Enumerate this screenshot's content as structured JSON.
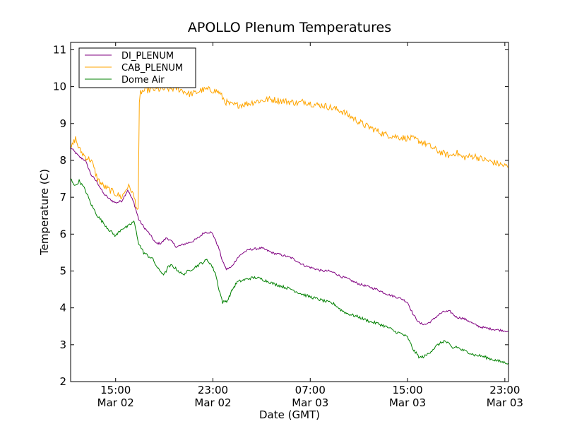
{
  "chart_data": {
    "type": "line",
    "title": "APOLLO Plenum Temperatures",
    "xlabel": "Date (GMT)",
    "ylabel": "Temperature (C)",
    "x_unit": "hours since Mar 02 00:00 GMT",
    "xlim": [
      11.3,
      47.3
    ],
    "ylim": [
      2,
      11.2
    ],
    "y_ticks": [
      2,
      3,
      4,
      5,
      6,
      7,
      8,
      9,
      10,
      11
    ],
    "x_ticks": [
      {
        "x": 15,
        "time": "15:00",
        "date": "Mar 02"
      },
      {
        "x": 23,
        "time": "23:00",
        "date": "Mar 02"
      },
      {
        "x": 31,
        "time": "07:00",
        "date": "Mar 03"
      },
      {
        "x": 39,
        "time": "15:00",
        "date": "Mar 03"
      },
      {
        "x": 47,
        "time": "23:00",
        "date": "Mar 03"
      }
    ],
    "legend_position": "top-left",
    "series": [
      {
        "name": "DI_PLENUM",
        "color": "#800080",
        "x": [
          11.3,
          12.0,
          12.5,
          13.0,
          13.5,
          14.0,
          14.5,
          15.0,
          15.5,
          16.0,
          16.5,
          16.9,
          17.3,
          17.8,
          18.3,
          18.7,
          19.2,
          19.6,
          20.0,
          20.4,
          20.8,
          21.3,
          21.8,
          22.3,
          22.8,
          23.0,
          23.5,
          23.8,
          24.1,
          24.5,
          25.0,
          25.5,
          26.0,
          26.5,
          27.0,
          27.5,
          28.0,
          28.5,
          29.0,
          29.5,
          30.0,
          30.5,
          31.0,
          31.5,
          32.0,
          32.5,
          33.0,
          33.5,
          34.0,
          34.5,
          35.0,
          35.5,
          36.0,
          36.5,
          37.0,
          37.5,
          38.0,
          38.5,
          39.0,
          39.5,
          40.0,
          40.5,
          41.0,
          41.5,
          42.0,
          42.5,
          43.0,
          43.5,
          44.0,
          44.5,
          45.0,
          45.5,
          46.0,
          46.5,
          47.0,
          47.3
        ],
        "y": [
          8.35,
          8.1,
          8.0,
          7.6,
          7.4,
          7.1,
          6.95,
          6.85,
          6.9,
          7.2,
          6.85,
          6.4,
          6.2,
          6.0,
          5.75,
          5.75,
          5.9,
          5.8,
          5.65,
          5.7,
          5.75,
          5.8,
          5.9,
          6.05,
          6.05,
          6.0,
          5.6,
          5.25,
          5.05,
          5.1,
          5.35,
          5.5,
          5.58,
          5.6,
          5.62,
          5.55,
          5.48,
          5.45,
          5.4,
          5.35,
          5.25,
          5.15,
          5.1,
          5.05,
          5.0,
          5.0,
          4.95,
          4.85,
          4.8,
          4.72,
          4.65,
          4.6,
          4.55,
          4.5,
          4.42,
          4.35,
          4.3,
          4.25,
          4.15,
          3.8,
          3.58,
          3.55,
          3.65,
          3.8,
          3.9,
          3.9,
          3.75,
          3.72,
          3.65,
          3.55,
          3.48,
          3.45,
          3.42,
          3.4,
          3.38,
          3.37
        ]
      },
      {
        "name": "CAB_PLENUM",
        "color": "#ffa500",
        "x": [
          11.3,
          11.7,
          12.0,
          12.5,
          13.0,
          13.5,
          14.0,
          14.5,
          15.0,
          15.5,
          16.0,
          16.3,
          16.6,
          16.85,
          16.95,
          17.05,
          17.5,
          18.0,
          19.0,
          20.0,
          20.5,
          21.0,
          21.5,
          22.0,
          22.5,
          23.0,
          23.5,
          24.0,
          24.5,
          25.0,
          25.5,
          26.0,
          26.5,
          27.0,
          27.5,
          28.0,
          28.5,
          29.0,
          29.5,
          30.0,
          30.5,
          31.0,
          31.5,
          32.0,
          32.5,
          33.0,
          33.5,
          34.0,
          34.5,
          35.0,
          35.5,
          36.0,
          36.5,
          37.0,
          37.5,
          38.0,
          38.5,
          39.0,
          39.5,
          40.0,
          40.5,
          41.0,
          41.5,
          42.0,
          42.5,
          43.0,
          43.5,
          44.0,
          44.5,
          45.0,
          45.5,
          46.0,
          46.5,
          47.0,
          47.3
        ],
        "y": [
          8.3,
          8.6,
          8.3,
          8.1,
          8.0,
          7.5,
          7.3,
          7.2,
          7.1,
          7.0,
          7.3,
          7.2,
          6.9,
          6.6,
          9.5,
          9.85,
          9.9,
          9.92,
          9.93,
          9.95,
          9.9,
          9.8,
          9.82,
          9.9,
          9.92,
          9.9,
          9.85,
          9.6,
          9.5,
          9.5,
          9.52,
          9.55,
          9.6,
          9.62,
          9.65,
          9.65,
          9.62,
          9.6,
          9.58,
          9.55,
          9.6,
          9.55,
          9.5,
          9.5,
          9.45,
          9.4,
          9.35,
          9.25,
          9.15,
          9.05,
          8.95,
          8.88,
          8.8,
          8.72,
          8.68,
          8.65,
          8.62,
          8.6,
          8.58,
          8.52,
          8.45,
          8.35,
          8.25,
          8.18,
          8.12,
          8.22,
          8.08,
          8.1,
          8.12,
          8.05,
          8.0,
          7.95,
          7.9,
          7.85,
          7.82
        ]
      },
      {
        "name": "Dome Air",
        "color": "#008000",
        "x": [
          11.3,
          11.7,
          12.0,
          12.5,
          13.0,
          13.5,
          14.0,
          14.5,
          15.0,
          15.5,
          16.0,
          16.5,
          16.9,
          17.3,
          17.7,
          18.0,
          18.5,
          19.0,
          19.3,
          19.6,
          20.0,
          20.5,
          21.0,
          21.5,
          22.0,
          22.5,
          22.8,
          23.2,
          23.5,
          23.8,
          24.2,
          24.6,
          25.0,
          25.5,
          26.0,
          26.5,
          27.0,
          27.5,
          28.0,
          28.5,
          29.0,
          29.5,
          30.0,
          30.5,
          31.0,
          31.5,
          32.0,
          32.5,
          33.0,
          33.5,
          34.0,
          34.5,
          35.0,
          35.5,
          36.0,
          36.5,
          37.0,
          37.5,
          38.0,
          38.5,
          39.0,
          39.5,
          40.0,
          40.5,
          41.0,
          41.5,
          42.0,
          42.3,
          42.7,
          43.0,
          43.5,
          44.0,
          44.5,
          45.0,
          45.5,
          46.0,
          46.5,
          47.0,
          47.3
        ],
        "y": [
          7.5,
          7.3,
          7.45,
          7.2,
          6.8,
          6.5,
          6.3,
          6.1,
          5.95,
          6.15,
          6.2,
          6.35,
          5.75,
          5.5,
          5.4,
          5.35,
          5.05,
          4.9,
          5.1,
          5.15,
          5.05,
          4.9,
          5.0,
          5.1,
          5.2,
          5.3,
          5.2,
          4.95,
          4.5,
          4.15,
          4.2,
          4.5,
          4.7,
          4.75,
          4.8,
          4.82,
          4.78,
          4.72,
          4.65,
          4.6,
          4.55,
          4.5,
          4.42,
          4.35,
          4.3,
          4.25,
          4.2,
          4.15,
          4.1,
          3.95,
          3.85,
          3.8,
          3.75,
          3.68,
          3.62,
          3.58,
          3.52,
          3.45,
          3.35,
          3.3,
          3.2,
          2.85,
          2.65,
          2.7,
          2.85,
          3.0,
          3.1,
          3.05,
          2.9,
          2.95,
          2.85,
          2.8,
          2.72,
          2.7,
          2.65,
          2.6,
          2.55,
          2.52,
          2.5
        ]
      }
    ]
  }
}
